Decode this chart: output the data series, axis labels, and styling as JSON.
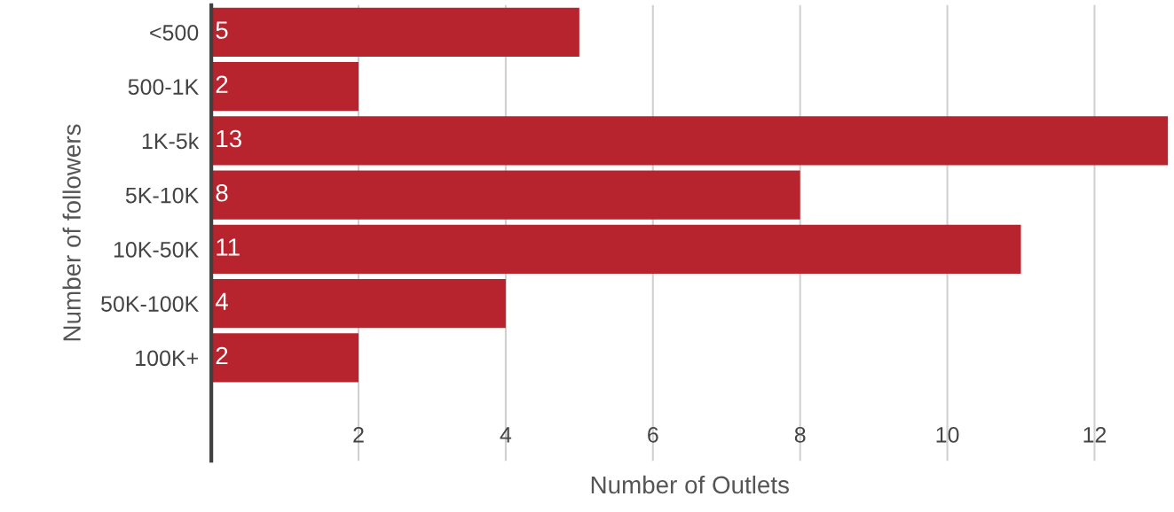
{
  "chart_data": {
    "type": "bar",
    "orientation": "horizontal",
    "xlabel": "Number of Outlets",
    "ylabel": "Number of followers",
    "categories": [
      "<500",
      "500-1K",
      "1K-5k",
      "5K-10K",
      "10K-50K",
      "50K-100K",
      "100K+"
    ],
    "values": [
      5,
      2,
      13,
      8,
      11,
      4,
      2
    ],
    "color": "#b8242d",
    "xlim": [
      0,
      13
    ],
    "xticks": [
      2,
      4,
      6,
      8,
      10,
      12
    ],
    "grid": "x",
    "data_labels": true
  }
}
